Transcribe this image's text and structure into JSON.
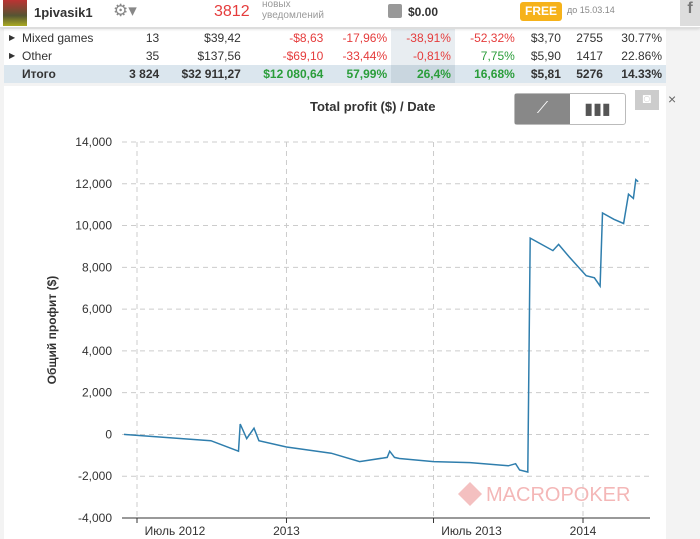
{
  "header": {
    "username": "1pivasik1",
    "notifications_count": "3812",
    "notifications_label_1": "новых",
    "notifications_label_2": "уведомлений",
    "balance": "$0.00",
    "plan_badge": "FREE",
    "plan_until": "до 15.03.14",
    "facebook": "f"
  },
  "table": {
    "rows": [
      {
        "name": "Mixed games",
        "c": [
          "13",
          "$39,42",
          "-$8,63",
          "-17,96%",
          "-38,91%",
          "-52,32%",
          "$3,70",
          "2755",
          "30.77%"
        ]
      },
      {
        "name": "Other",
        "c": [
          "35",
          "$137,56",
          "-$69,10",
          "-33,44%",
          "-0,81%",
          "7,75%",
          "$5,90",
          "1417",
          "22.86%"
        ]
      }
    ],
    "total": {
      "name": "Итого",
      "c": [
        "3 824",
        "$32 911,27",
        "$12 080,64",
        "57,99%",
        "26,4%",
        "16,68%",
        "$5,81",
        "5276",
        "14.33%"
      ]
    }
  },
  "chart_data": {
    "type": "line",
    "title": "Total profit ($) / Date",
    "xlabel": "",
    "ylabel": "Общий профит ($)",
    "ylim": [
      -4000,
      14000
    ],
    "yticks": [
      "-4,000",
      "-2,000",
      "0",
      "2,000",
      "4,000",
      "6,000",
      "8,000",
      "10,000",
      "12,000",
      "14,000"
    ],
    "xticks": [
      "Июль 2012",
      "2013",
      "Июль 2013",
      "2014"
    ],
    "grid": true,
    "line_color": "#2f7ead",
    "watermark": "MACROPOKER",
    "x": [
      "2012-06-15",
      "2012-08-25",
      "2012-09-30",
      "2012-11-03",
      "2012-11-05",
      "2012-11-13",
      "2012-11-22",
      "2012-11-28",
      "2013-01-01",
      "2013-02-25",
      "2013-04-01",
      "2013-05-05",
      "2013-05-08",
      "2013-05-14",
      "2013-05-20",
      "2013-07-01",
      "2013-08-15",
      "2013-10-01",
      "2013-10-10",
      "2013-10-15",
      "2013-10-25",
      "2013-10-28",
      "2013-11-25",
      "2013-12-02",
      "2013-12-15",
      "2014-01-05",
      "2014-01-15",
      "2014-01-22",
      "2014-01-25",
      "2014-02-08",
      "2014-02-20",
      "2014-02-26",
      "2014-03-04",
      "2014-03-07",
      "2014-03-10"
    ],
    "y": [
      0,
      -200,
      -300,
      -800,
      500,
      -200,
      300,
      -300,
      -600,
      -900,
      -1300,
      -1100,
      -800,
      -1100,
      -1150,
      -1300,
      -1350,
      -1500,
      -1400,
      -1700,
      -1800,
      9400,
      8800,
      9100,
      8500,
      7600,
      7500,
      7100,
      10600,
      10300,
      10100,
      11500,
      11300,
      12200,
      12100
    ]
  },
  "controls": {
    "line_icon": "line-chart-icon",
    "bar_icon": "bar-chart-icon",
    "camera_icon": "camera-icon",
    "close": "×"
  }
}
